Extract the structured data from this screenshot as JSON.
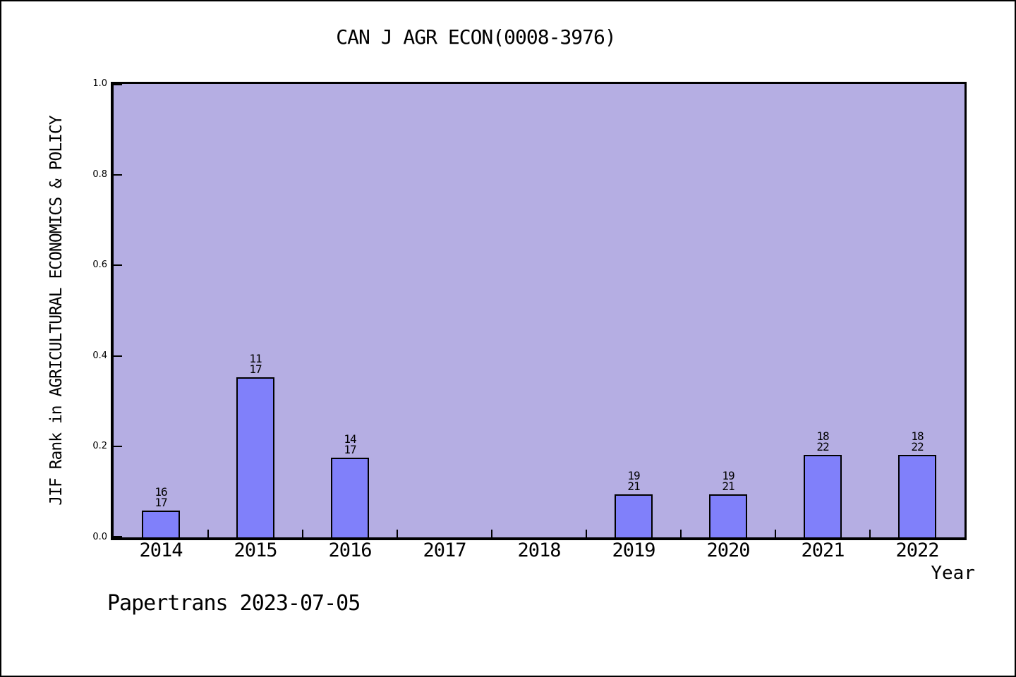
{
  "title": "CAN J AGR ECON(0008-3976)",
  "ylabel": "JIF Rank in AGRICULTURAL ECONOMICS & POLICY",
  "xlabel": "Year",
  "footer": "Papertrans 2023-07-05",
  "colors": {
    "plot_bg": "#b5aee3",
    "bar_fill": "#8080fa",
    "bar_edge": "#000000",
    "text": "#000000"
  },
  "chart_data": {
    "type": "bar",
    "title": "CAN J AGR ECON(0008-3976)",
    "xlabel": "Year",
    "ylabel": "JIF Rank in AGRICULTURAL ECONOMICS & POLICY",
    "categories": [
      "2014",
      "2015",
      "2016",
      "2017",
      "2018",
      "2019",
      "2020",
      "2021",
      "2022"
    ],
    "yticks": [
      "0.0",
      "0.2",
      "0.4",
      "0.6",
      "0.8",
      "1.0"
    ],
    "ylim": [
      0,
      1
    ],
    "grid": false,
    "legend": null,
    "bars": [
      {
        "year": "2014",
        "rank": "16",
        "total": "17",
        "value": 0.0588
      },
      {
        "year": "2015",
        "rank": "11",
        "total": "17",
        "value": 0.3529
      },
      {
        "year": "2016",
        "rank": "14",
        "total": "17",
        "value": 0.1765
      },
      {
        "year": "2017",
        "rank": null,
        "total": null,
        "value": null
      },
      {
        "year": "2018",
        "rank": null,
        "total": null,
        "value": null
      },
      {
        "year": "2019",
        "rank": "19",
        "total": "21",
        "value": 0.0952
      },
      {
        "year": "2020",
        "rank": "19",
        "total": "21",
        "value": 0.0952
      },
      {
        "year": "2021",
        "rank": "18",
        "total": "22",
        "value": 0.1818
      },
      {
        "year": "2022",
        "rank": "18",
        "total": "22",
        "value": 0.1818
      }
    ]
  }
}
